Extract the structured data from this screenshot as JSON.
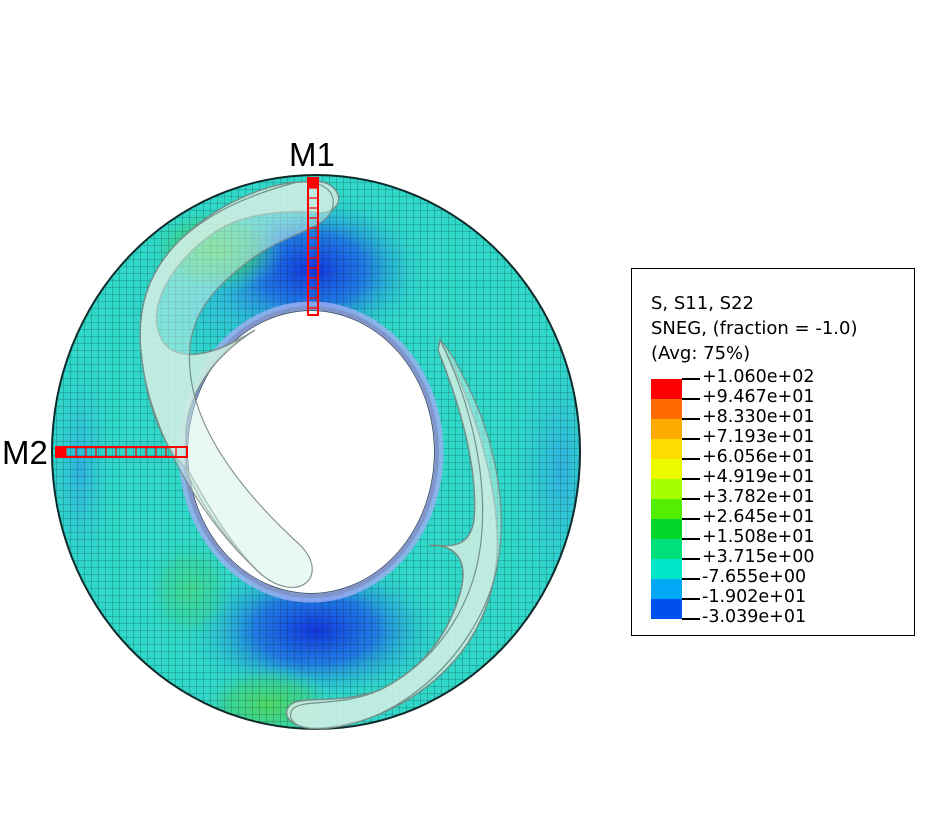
{
  "figure": {
    "markers": [
      {
        "id": "M1",
        "label": "M1"
      },
      {
        "id": "M2",
        "label": "M2"
      }
    ]
  },
  "legend": {
    "header_lines": [
      "S, S11, S22",
      "SNEG, (fraction = -1.0)",
      "(Avg: 75%)"
    ],
    "values": [
      "+1.060e+02",
      "+9.467e+01",
      "+8.330e+01",
      "+7.193e+01",
      "+6.056e+01",
      "+4.919e+01",
      "+3.782e+01",
      "+2.645e+01",
      "+1.508e+01",
      "+3.715e+00",
      "-7.655e+00",
      "-1.902e+01",
      "-3.039e+01"
    ],
    "colors": [
      "#ff0000",
      "#ff6a00",
      "#ffaa00",
      "#ffdc00",
      "#ecfa00",
      "#a6ff00",
      "#52ef00",
      "#00d728",
      "#00e07a",
      "#00e6c8",
      "#00a8f5",
      "#0050f0",
      "#0000e6"
    ]
  },
  "colors": {
    "ring_base": "#2fd8c9",
    "compression": "#1a4fe6",
    "tension": "#5fe25a",
    "insert_fill": "#ccebe2",
    "marker_red": "#ff0000"
  }
}
